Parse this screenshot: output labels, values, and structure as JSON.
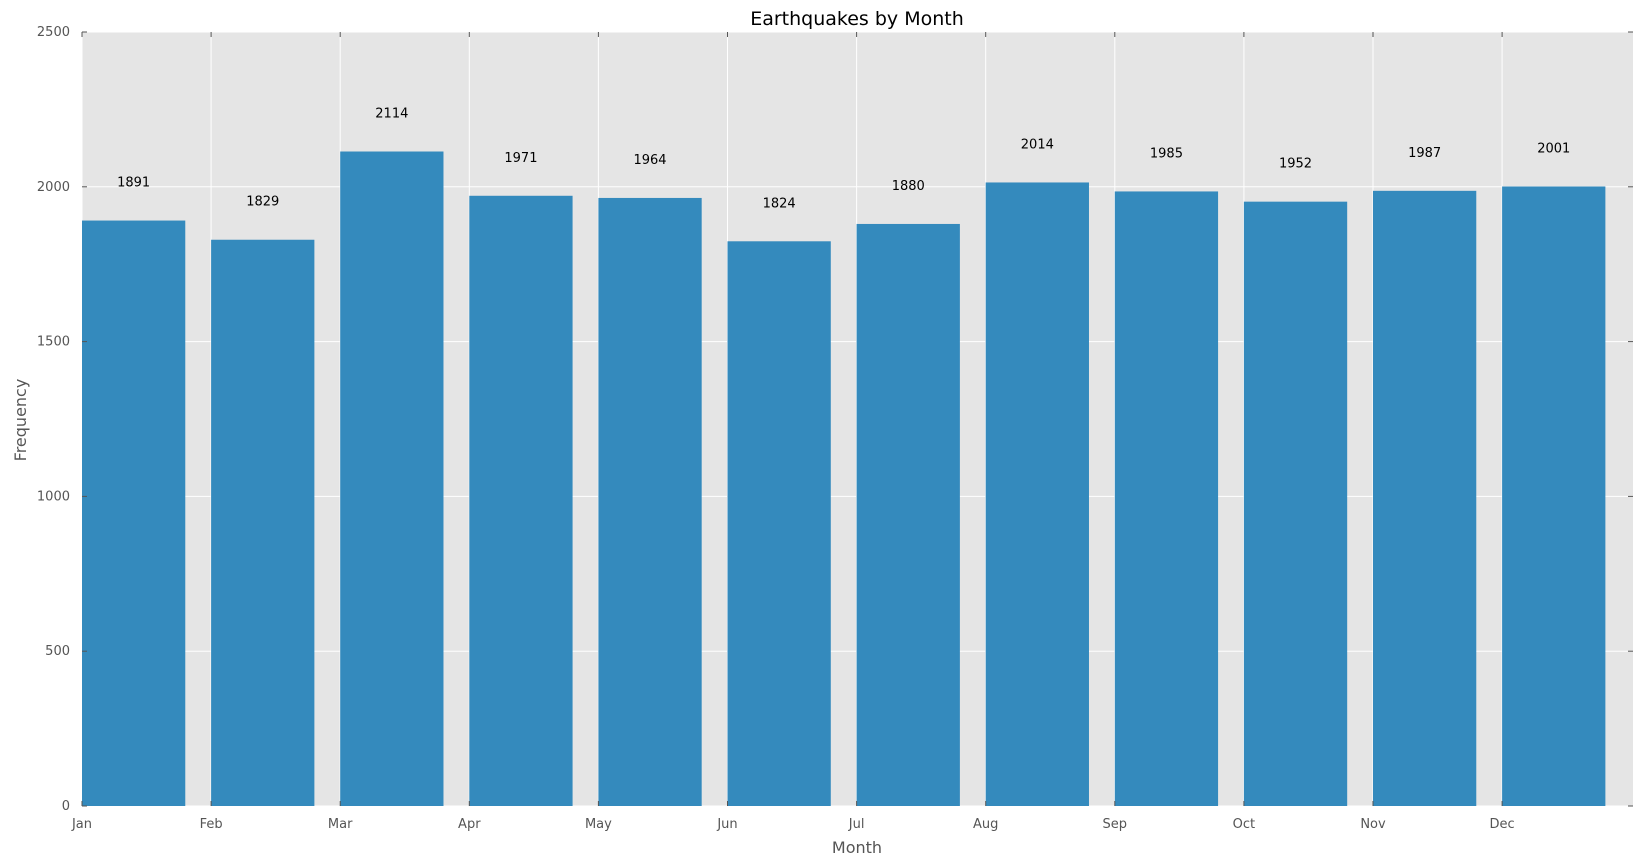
{
  "chart_data": {
    "type": "bar",
    "title": "Earthquakes by Month",
    "xlabel": "Month",
    "ylabel": "Frequency",
    "categories": [
      "Jan",
      "Feb",
      "Mar",
      "Apr",
      "May",
      "Jun",
      "Jul",
      "Aug",
      "Sep",
      "Oct",
      "Nov",
      "Dec"
    ],
    "values": [
      1891,
      1829,
      2114,
      1971,
      1964,
      1824,
      1880,
      2014,
      1985,
      1952,
      1987,
      2001
    ],
    "data_labels": [
      "1891",
      "1829",
      "2114",
      "1971",
      "1964",
      "1824",
      "1880",
      "2014",
      "1985",
      "1952",
      "1987",
      "2001"
    ],
    "ylim": [
      0,
      2500
    ],
    "yticks": [
      0,
      500,
      1000,
      1500,
      2000,
      2500
    ],
    "ytick_labels": [
      "0",
      "500",
      "1000",
      "1500",
      "2000",
      "2500"
    ],
    "xtick_labels": [
      "Jan",
      "Feb",
      "Mar",
      "Apr",
      "May",
      "Jun",
      "Jul",
      "Aug",
      "Sep",
      "Oct",
      "Nov",
      "Dec"
    ],
    "grid": true,
    "legend": "none",
    "colors": {
      "bar": "#348abd",
      "plot_background": "#e5e5e5",
      "grid": "#ffffff",
      "tick_text": "#555555",
      "title_text": "#000000",
      "data_label_text": "#000000"
    }
  }
}
